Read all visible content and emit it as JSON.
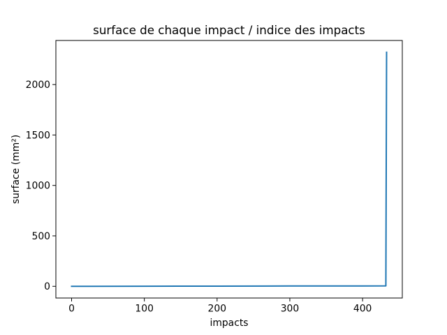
{
  "chart_data": {
    "type": "line",
    "title": "surface de chaque impact / indice des impacts",
    "xlabel": "impacts",
    "ylabel": "surface (mm²)",
    "xlim": [
      -21.6,
      454.6
    ],
    "ylim": [
      -116,
      2437
    ],
    "xticks": [
      0,
      100,
      200,
      300,
      400
    ],
    "yticks": [
      0,
      500,
      1000,
      1500,
      2000
    ],
    "xtick_labels": [
      "0",
      "100",
      "200",
      "300",
      "400"
    ],
    "ytick_labels": [
      "0",
      "500",
      "1000",
      "1500",
      "2000"
    ],
    "grid": false,
    "legend": "none",
    "series": [
      {
        "color": "#1f77b4",
        "x": [
          0,
          100,
          200,
          300,
          400,
          432,
          433
        ],
        "y": [
          0,
          1,
          2,
          3,
          3,
          4,
          2320
        ]
      }
    ]
  }
}
